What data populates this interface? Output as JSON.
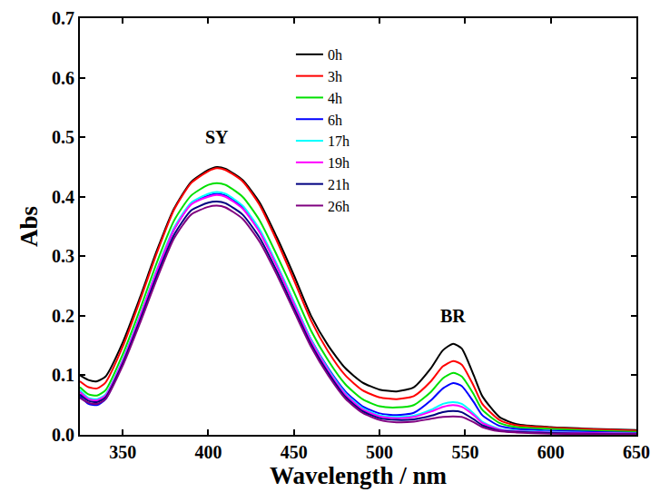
{
  "chart_data": {
    "type": "line",
    "x_label": "Wavelength / nm",
    "y_label": "Abs",
    "x": [
      325,
      330,
      335,
      340,
      350,
      360,
      370,
      380,
      390,
      400,
      405,
      410,
      420,
      430,
      440,
      450,
      460,
      470,
      480,
      490,
      500,
      510,
      520,
      530,
      537,
      543,
      548,
      555,
      560,
      570,
      580,
      600,
      625,
      650
    ],
    "series": [
      {
        "name": "0h",
        "color": "#000000",
        "values": [
          0.1,
          0.092,
          0.09,
          0.098,
          0.155,
          0.23,
          0.31,
          0.38,
          0.425,
          0.445,
          0.45,
          0.447,
          0.428,
          0.39,
          0.332,
          0.268,
          0.2,
          0.15,
          0.112,
          0.088,
          0.076,
          0.073,
          0.08,
          0.112,
          0.142,
          0.153,
          0.145,
          0.1,
          0.065,
          0.03,
          0.018,
          0.013,
          0.01,
          0.008
        ]
      },
      {
        "name": "3h",
        "color": "#ff0000",
        "values": [
          0.09,
          0.08,
          0.078,
          0.088,
          0.148,
          0.225,
          0.306,
          0.378,
          0.423,
          0.443,
          0.448,
          0.445,
          0.426,
          0.386,
          0.326,
          0.26,
          0.192,
          0.14,
          0.1,
          0.075,
          0.063,
          0.06,
          0.065,
          0.09,
          0.115,
          0.124,
          0.118,
          0.082,
          0.052,
          0.025,
          0.016,
          0.012,
          0.009,
          0.007
        ]
      },
      {
        "name": "4h",
        "color": "#00e000",
        "values": [
          0.08,
          0.068,
          0.066,
          0.075,
          0.135,
          0.21,
          0.29,
          0.36,
          0.402,
          0.42,
          0.423,
          0.42,
          0.4,
          0.36,
          0.302,
          0.24,
          0.175,
          0.125,
          0.085,
          0.06,
          0.048,
          0.046,
          0.05,
          0.072,
          0.095,
          0.104,
          0.098,
          0.068,
          0.042,
          0.02,
          0.013,
          0.01,
          0.007,
          0.005
        ]
      },
      {
        "name": "6h",
        "color": "#0000ff",
        "values": [
          0.065,
          0.052,
          0.05,
          0.06,
          0.12,
          0.195,
          0.275,
          0.345,
          0.388,
          0.402,
          0.405,
          0.402,
          0.382,
          0.342,
          0.285,
          0.222,
          0.16,
          0.112,
          0.073,
          0.048,
          0.036,
          0.033,
          0.037,
          0.058,
          0.078,
          0.087,
          0.082,
          0.055,
          0.033,
          0.015,
          0.01,
          0.007,
          0.005,
          0.003
        ]
      },
      {
        "name": "17h",
        "color": "#00ffff",
        "values": [
          0.075,
          0.062,
          0.06,
          0.068,
          0.126,
          0.2,
          0.278,
          0.348,
          0.39,
          0.405,
          0.408,
          0.405,
          0.385,
          0.345,
          0.287,
          0.224,
          0.16,
          0.11,
          0.07,
          0.045,
          0.033,
          0.03,
          0.032,
          0.042,
          0.052,
          0.055,
          0.052,
          0.036,
          0.022,
          0.01,
          0.007,
          0.005,
          0.003,
          0.002
        ]
      },
      {
        "name": "19h",
        "color": "#ff00ff",
        "values": [
          0.072,
          0.06,
          0.058,
          0.066,
          0.124,
          0.198,
          0.276,
          0.345,
          0.387,
          0.4,
          0.403,
          0.4,
          0.38,
          0.34,
          0.283,
          0.22,
          0.157,
          0.108,
          0.068,
          0.043,
          0.031,
          0.028,
          0.03,
          0.039,
          0.047,
          0.05,
          0.047,
          0.033,
          0.02,
          0.009,
          0.006,
          0.004,
          0.003,
          0.002
        ]
      },
      {
        "name": "21h",
        "color": "#000080",
        "values": [
          0.068,
          0.057,
          0.055,
          0.063,
          0.12,
          0.192,
          0.268,
          0.336,
          0.377,
          0.39,
          0.392,
          0.389,
          0.37,
          0.331,
          0.275,
          0.213,
          0.152,
          0.104,
          0.064,
          0.04,
          0.028,
          0.025,
          0.026,
          0.032,
          0.038,
          0.04,
          0.038,
          0.026,
          0.016,
          0.007,
          0.005,
          0.003,
          0.002,
          0.001
        ]
      },
      {
        "name": "26h",
        "color": "#800080",
        "values": [
          0.062,
          0.054,
          0.052,
          0.06,
          0.116,
          0.187,
          0.262,
          0.33,
          0.37,
          0.383,
          0.385,
          0.382,
          0.363,
          0.324,
          0.269,
          0.208,
          0.148,
          0.1,
          0.061,
          0.037,
          0.025,
          0.021,
          0.022,
          0.027,
          0.03,
          0.031,
          0.03,
          0.021,
          0.013,
          0.006,
          0.004,
          0.002,
          0.001,
          0.001
        ]
      }
    ],
    "annotations": [
      {
        "text": "SY",
        "x": 405,
        "y": 0.5
      },
      {
        "text": "BR",
        "x": 543,
        "y": 0.2
      }
    ],
    "xlim": [
      325,
      650
    ],
    "xticks": [
      350,
      400,
      450,
      500,
      550,
      600,
      650
    ],
    "ylim": [
      0,
      0.7
    ],
    "yticks": [
      {
        "value": 0,
        "label": "0.0"
      },
      0.1,
      0.2,
      0.3,
      0.4,
      0.5,
      0.6,
      0.7
    ],
    "grid": false,
    "legend": "top"
  }
}
